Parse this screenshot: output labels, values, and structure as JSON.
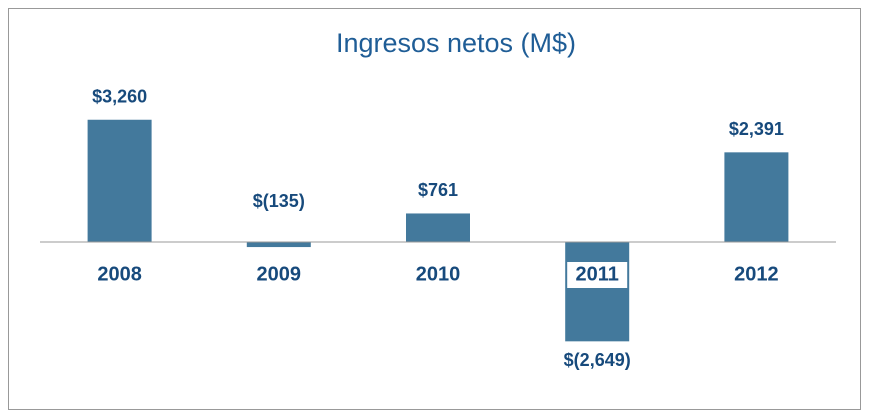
{
  "chart_data": {
    "type": "bar",
    "title": "Ingresos netos (M$)",
    "categories": [
      "2008",
      "2009",
      "2010",
      "2011",
      "2012"
    ],
    "values": [
      3260,
      -135,
      761,
      -2649,
      2391
    ],
    "value_labels": [
      "$3,260",
      "$(135)",
      "$761",
      "$(2,649)",
      "$2,391"
    ],
    "color": "#43799c",
    "ylim": [
      -4000,
      4000
    ]
  }
}
